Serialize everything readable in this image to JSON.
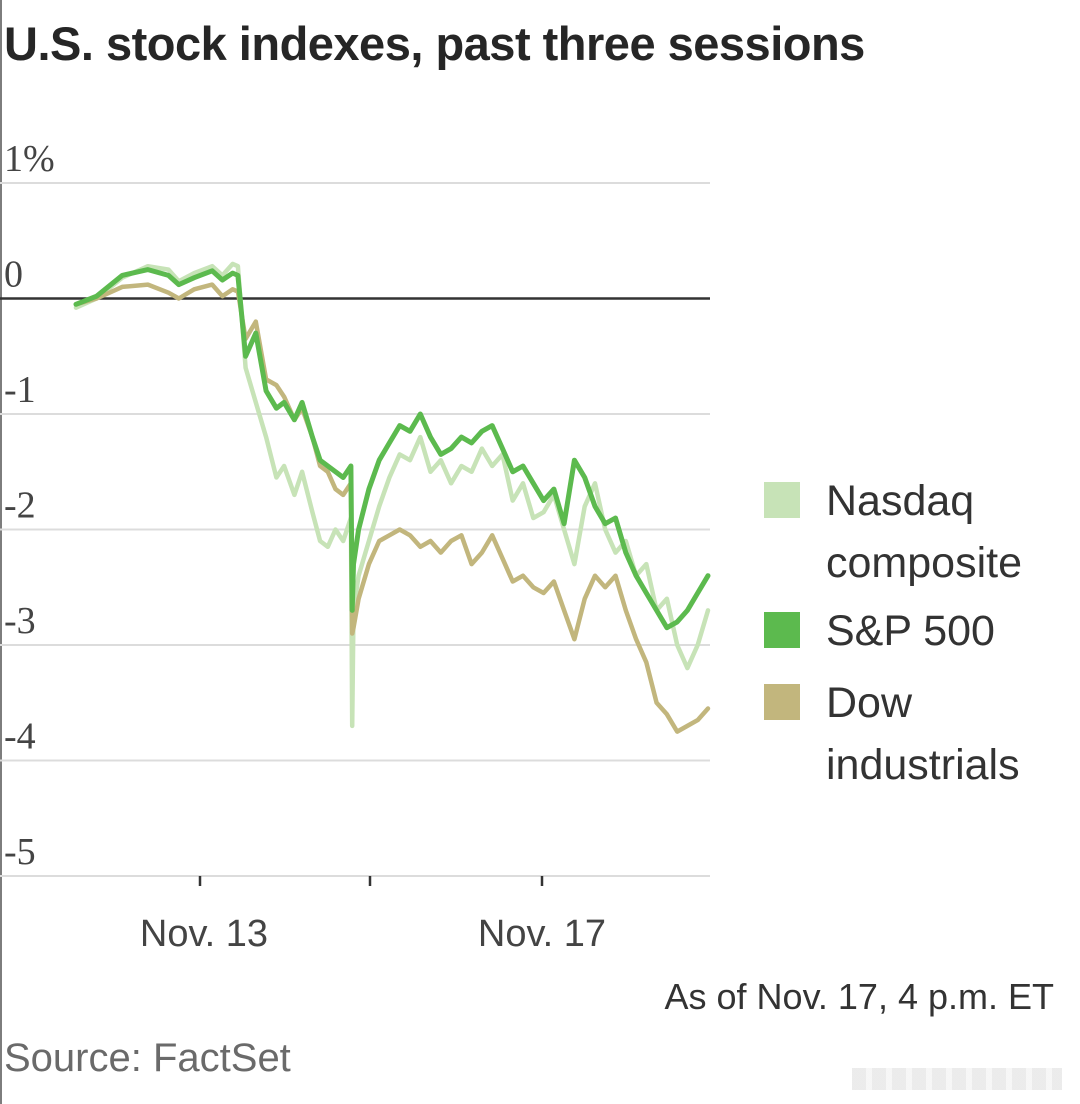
{
  "chart_data": {
    "type": "line",
    "title": "U.S. stock indexes, past three sessions",
    "ylabel": "%",
    "ylim": [
      -5,
      1
    ],
    "yticks": [
      {
        "value": 1,
        "label": "1%"
      },
      {
        "value": 0,
        "label": "0"
      },
      {
        "value": -1,
        "label": "-1"
      },
      {
        "value": -2,
        "label": "-2"
      },
      {
        "value": -3,
        "label": "-3"
      },
      {
        "value": -4,
        "label": "-4"
      },
      {
        "value": -5,
        "label": "-5"
      }
    ],
    "xlim": [
      0,
      3
    ],
    "xticks": [
      0.62,
      1.08,
      1.62
    ],
    "xtick_labels": [
      {
        "label": "Nov. 13",
        "position": 0.62
      },
      {
        "label": "Nov. 17",
        "position": 1.62
      }
    ],
    "session_boundaries": [
      0.62,
      1.08
    ],
    "series": [
      {
        "name": "Nasdaq composite",
        "color": "#c7e3b7",
        "x": [
          0,
          0.08,
          0.18,
          0.28,
          0.36,
          0.4,
          0.46,
          0.53,
          0.57,
          0.61,
          0.63,
          0.66,
          0.7,
          0.74,
          0.78,
          0.81,
          0.85,
          0.88,
          0.92,
          0.95,
          0.98,
          1.01,
          1.04,
          1.07,
          1.075,
          1.08,
          1.1,
          1.14,
          1.18,
          1.22,
          1.26,
          1.3,
          1.34,
          1.38,
          1.42,
          1.46,
          1.5,
          1.54,
          1.58,
          1.62,
          1.66,
          1.7,
          1.74,
          1.78,
          1.82,
          1.86,
          1.9,
          1.94,
          1.98,
          2.02,
          2.06,
          2.1,
          2.14,
          2.18,
          2.22,
          2.26,
          2.3,
          2.34,
          2.38,
          2.42,
          2.46
        ],
        "values": [
          -0.08,
          0.0,
          0.18,
          0.28,
          0.25,
          0.15,
          0.22,
          0.28,
          0.2,
          0.3,
          0.28,
          -0.6,
          -0.9,
          -1.2,
          -1.55,
          -1.45,
          -1.7,
          -1.5,
          -1.85,
          -2.1,
          -2.15,
          -2.0,
          -2.1,
          -1.9,
          -3.7,
          -2.7,
          -2.4,
          -2.1,
          -1.8,
          -1.55,
          -1.35,
          -1.4,
          -1.2,
          -1.5,
          -1.4,
          -1.6,
          -1.45,
          -1.5,
          -1.3,
          -1.45,
          -1.35,
          -1.75,
          -1.6,
          -1.9,
          -1.85,
          -1.7,
          -2.0,
          -2.3,
          -1.8,
          -1.6,
          -2.0,
          -2.2,
          -2.1,
          -2.4,
          -2.3,
          -2.7,
          -2.6,
          -3.0,
          -3.2,
          -3.0,
          -2.7
        ]
      },
      {
        "name": "S&P 500",
        "color": "#5cba4e",
        "x": [
          0,
          0.08,
          0.18,
          0.28,
          0.36,
          0.4,
          0.46,
          0.53,
          0.57,
          0.61,
          0.63,
          0.66,
          0.7,
          0.74,
          0.78,
          0.81,
          0.85,
          0.88,
          0.92,
          0.95,
          0.98,
          1.01,
          1.04,
          1.07,
          1.075,
          1.08,
          1.1,
          1.14,
          1.18,
          1.22,
          1.26,
          1.3,
          1.34,
          1.38,
          1.42,
          1.46,
          1.5,
          1.54,
          1.58,
          1.62,
          1.66,
          1.7,
          1.74,
          1.78,
          1.82,
          1.86,
          1.9,
          1.94,
          1.98,
          2.02,
          2.06,
          2.1,
          2.14,
          2.18,
          2.22,
          2.26,
          2.3,
          2.34,
          2.38,
          2.42,
          2.46
        ],
        "values": [
          -0.05,
          0.02,
          0.2,
          0.25,
          0.2,
          0.12,
          0.18,
          0.24,
          0.16,
          0.22,
          0.2,
          -0.5,
          -0.3,
          -0.8,
          -0.95,
          -0.9,
          -1.05,
          -0.9,
          -1.2,
          -1.4,
          -1.45,
          -1.5,
          -1.55,
          -1.45,
          -2.7,
          -2.3,
          -2.0,
          -1.65,
          -1.4,
          -1.25,
          -1.1,
          -1.15,
          -1.0,
          -1.2,
          -1.35,
          -1.3,
          -1.2,
          -1.25,
          -1.15,
          -1.1,
          -1.3,
          -1.5,
          -1.45,
          -1.6,
          -1.75,
          -1.65,
          -1.95,
          -1.4,
          -1.55,
          -1.8,
          -1.95,
          -1.9,
          -2.2,
          -2.4,
          -2.55,
          -2.7,
          -2.85,
          -2.8,
          -2.7,
          -2.55,
          -2.4
        ]
      },
      {
        "name": "Dow industrials",
        "color": "#c2b67d",
        "x": [
          0,
          0.08,
          0.18,
          0.28,
          0.36,
          0.4,
          0.46,
          0.53,
          0.57,
          0.61,
          0.63,
          0.66,
          0.7,
          0.74,
          0.78,
          0.81,
          0.85,
          0.88,
          0.92,
          0.95,
          0.98,
          1.01,
          1.04,
          1.07,
          1.075,
          1.08,
          1.1,
          1.14,
          1.18,
          1.22,
          1.26,
          1.3,
          1.34,
          1.38,
          1.42,
          1.46,
          1.5,
          1.54,
          1.58,
          1.62,
          1.66,
          1.7,
          1.74,
          1.78,
          1.82,
          1.86,
          1.9,
          1.94,
          1.98,
          2.02,
          2.06,
          2.1,
          2.14,
          2.18,
          2.22,
          2.26,
          2.3,
          2.34,
          2.38,
          2.42,
          2.46
        ],
        "values": [
          -0.05,
          0.0,
          0.1,
          0.12,
          0.05,
          0.0,
          0.08,
          0.12,
          0.02,
          0.08,
          0.06,
          -0.35,
          -0.2,
          -0.7,
          -0.75,
          -0.85,
          -1.05,
          -0.95,
          -1.2,
          -1.45,
          -1.5,
          -1.65,
          -1.7,
          -1.6,
          -2.9,
          -2.85,
          -2.6,
          -2.3,
          -2.1,
          -2.05,
          -2.0,
          -2.05,
          -2.15,
          -2.1,
          -2.2,
          -2.1,
          -2.05,
          -2.3,
          -2.2,
          -2.05,
          -2.25,
          -2.45,
          -2.4,
          -2.5,
          -2.55,
          -2.45,
          -2.7,
          -2.95,
          -2.6,
          -2.4,
          -2.5,
          -2.4,
          -2.7,
          -2.95,
          -3.15,
          -3.5,
          -3.6,
          -3.75,
          -3.7,
          -3.65,
          -3.55
        ]
      }
    ]
  },
  "legend": [
    {
      "lines": [
        "Nasdaq",
        "composite"
      ],
      "color": "#c7e3b7"
    },
    {
      "lines": [
        "S&P 500"
      ],
      "color": "#5cba4e"
    },
    {
      "lines": [
        "Dow",
        "industrials"
      ],
      "color": "#c2b67d"
    }
  ],
  "note": "As of Nov. 17, 4 p.m. ET",
  "source": "Source: FactSet"
}
